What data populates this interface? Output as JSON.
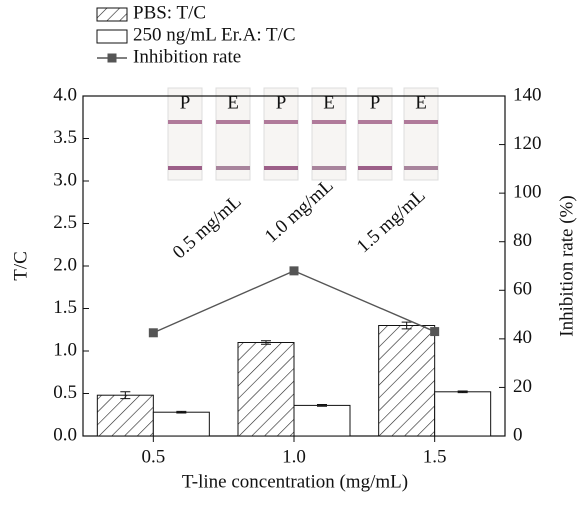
{
  "chart_data": {
    "type": "bar_line",
    "x_label": "T-line concentration (mg/mL)",
    "y_label": "T/C",
    "y2_label": "Inhibition rate (%)",
    "categories": [
      "0.5",
      "1.0",
      "1.5"
    ],
    "legend": "top-left",
    "series": [
      {
        "name": "PBS: T/C",
        "type": "bar",
        "color": "#ffffff",
        "hatch": true,
        "values": [
          0.48,
          1.1,
          1.3
        ],
        "errors": [
          0.04,
          0.02,
          0.04
        ]
      },
      {
        "name": "250 ng/mL Er.A: T/C",
        "type": "bar",
        "color": "#ffffff",
        "hatch": false,
        "values": [
          0.28,
          0.36,
          0.52
        ],
        "errors": [
          0.01,
          0.01,
          0.01
        ]
      },
      {
        "name": "Inhibition rate",
        "type": "line",
        "axis": "y2",
        "color": "#555555",
        "values": [
          42.5,
          68,
          43
        ]
      }
    ],
    "ylim": [
      0,
      4
    ],
    "yticks": [
      {
        "value": 0,
        "label": "0.0"
      },
      0.5,
      {
        "value": 1,
        "label": "1.0"
      },
      1.5,
      {
        "value": 2,
        "label": "2.0"
      },
      2.5,
      {
        "value": 3,
        "label": "3.0"
      },
      3.5,
      {
        "value": 4,
        "label": "4.0"
      }
    ],
    "y2lim": [
      0,
      140
    ],
    "y2ticks": [
      0,
      20,
      40,
      60,
      80,
      100,
      120,
      140
    ],
    "inset": {
      "strip_labels": [
        "P",
        "E",
        "P",
        "E",
        "P",
        "E"
      ],
      "concentration_labels": [
        "0.5 mg/mL",
        "1.0 mg/mL",
        "1.5 mg/mL"
      ]
    }
  }
}
